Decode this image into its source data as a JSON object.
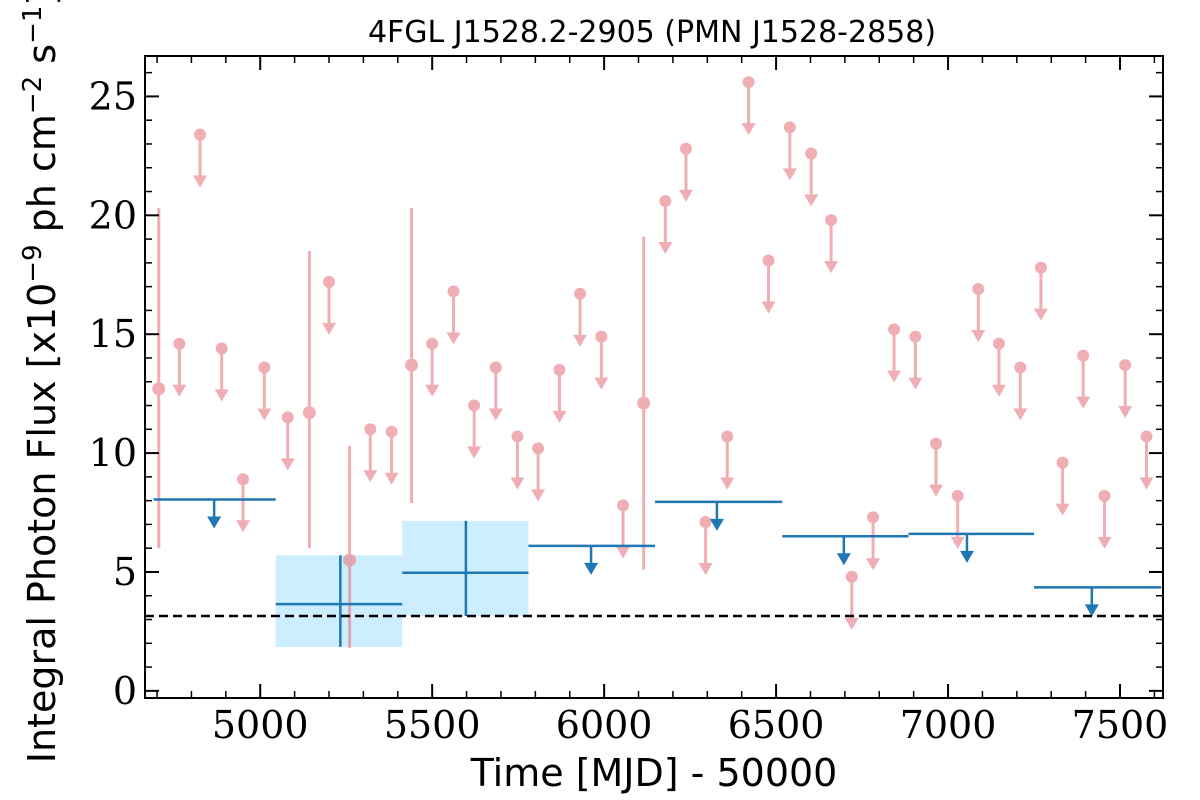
{
  "chart_data": {
    "type": "scatter",
    "title": "4FGL J1528.2-2905 (PMN J1528-2858)",
    "xlabel": "Time [MJD] - 50000",
    "ylabel_parts": [
      "Integral Photon Flux [x10",
      "−9",
      " ph cm",
      "−2",
      " s",
      "−1",
      "]"
    ],
    "xlim": [
      4665,
      7625
    ],
    "ylim": [
      -0.3,
      26.7
    ],
    "xticks": [
      5000,
      5500,
      6000,
      6500,
      7000,
      7500
    ],
    "yticks": [
      0,
      5,
      10,
      15,
      20,
      25
    ],
    "grid": false,
    "legend": "none",
    "reference_line": {
      "y": 3.15,
      "style": "dashed",
      "color": "#000000"
    },
    "colors": {
      "short": "#e8848c",
      "long": "#1f77b4",
      "long_fill": "#cceeff"
    },
    "series": [
      {
        "role": "short-timescale",
        "detections": [
          {
            "x": 4705,
            "y": 12.7,
            "ylo": 6.0,
            "yhi": 20.3
          },
          {
            "x": 5143,
            "y": 11.7,
            "ylo": 6.0,
            "yhi": 18.5
          },
          {
            "x": 5260,
            "y": 5.5,
            "ylo": 1.8,
            "yhi": 10.3
          },
          {
            "x": 5440,
            "y": 13.7,
            "ylo": 7.9,
            "yhi": 20.3
          },
          {
            "x": 6115,
            "y": 12.1,
            "ylo": 5.1,
            "yhi": 19.1
          }
        ],
        "upper_limits": [
          {
            "x": 4765,
            "y": 14.6
          },
          {
            "x": 4825,
            "y": 23.4
          },
          {
            "x": 4888,
            "y": 14.4
          },
          {
            "x": 4950,
            "y": 8.9
          },
          {
            "x": 5012,
            "y": 13.6
          },
          {
            "x": 5080,
            "y": 11.5
          },
          {
            "x": 5200,
            "y": 17.2
          },
          {
            "x": 5320,
            "y": 11.0
          },
          {
            "x": 5382,
            "y": 10.9
          },
          {
            "x": 5500,
            "y": 14.6
          },
          {
            "x": 5562,
            "y": 16.8
          },
          {
            "x": 5622,
            "y": 12.0
          },
          {
            "x": 5685,
            "y": 13.6
          },
          {
            "x": 5748,
            "y": 10.7
          },
          {
            "x": 5808,
            "y": 10.2
          },
          {
            "x": 5870,
            "y": 13.5
          },
          {
            "x": 5930,
            "y": 16.7
          },
          {
            "x": 5992,
            "y": 14.9
          },
          {
            "x": 6055,
            "y": 7.8
          },
          {
            "x": 6178,
            "y": 20.6
          },
          {
            "x": 6238,
            "y": 22.8
          },
          {
            "x": 6295,
            "y": 7.1
          },
          {
            "x": 6358,
            "y": 10.7
          },
          {
            "x": 6420,
            "y": 25.6
          },
          {
            "x": 6478,
            "y": 18.1
          },
          {
            "x": 6540,
            "y": 23.7
          },
          {
            "x": 6602,
            "y": 22.6
          },
          {
            "x": 6660,
            "y": 19.8
          },
          {
            "x": 6720,
            "y": 4.8
          },
          {
            "x": 6782,
            "y": 7.3
          },
          {
            "x": 6843,
            "y": 15.2
          },
          {
            "x": 6905,
            "y": 14.9
          },
          {
            "x": 6965,
            "y": 10.4
          },
          {
            "x": 7028,
            "y": 8.2
          },
          {
            "x": 7088,
            "y": 16.9
          },
          {
            "x": 7148,
            "y": 14.6
          },
          {
            "x": 7210,
            "y": 13.6
          },
          {
            "x": 7270,
            "y": 17.8
          },
          {
            "x": 7333,
            "y": 9.6
          },
          {
            "x": 7393,
            "y": 14.1
          },
          {
            "x": 7455,
            "y": 8.2
          },
          {
            "x": 7515,
            "y": 13.7
          },
          {
            "x": 7577,
            "y": 10.7
          }
        ]
      },
      {
        "role": "long-timescale",
        "detections": [
          {
            "x": 5233,
            "y": 3.65,
            "x0": 5045,
            "x1": 5413,
            "ylo": 1.85,
            "yhi": 5.7
          },
          {
            "x": 5598,
            "y": 4.97,
            "x0": 5413,
            "x1": 5780,
            "ylo": 3.15,
            "yhi": 7.15
          }
        ],
        "upper_limits": [
          {
            "x": 4866,
            "y": 8.05,
            "x0": 4690,
            "x1": 5045
          },
          {
            "x": 5962,
            "y": 6.1,
            "x0": 5780,
            "x1": 6148
          },
          {
            "x": 6328,
            "y": 7.95,
            "x0": 6148,
            "x1": 6518
          },
          {
            "x": 6697,
            "y": 6.5,
            "x0": 6518,
            "x1": 6885
          },
          {
            "x": 7055,
            "y": 6.6,
            "x0": 6885,
            "x1": 7250
          },
          {
            "x": 7418,
            "y": 4.35,
            "x0": 7250,
            "x1": 7620
          }
        ]
      }
    ]
  }
}
